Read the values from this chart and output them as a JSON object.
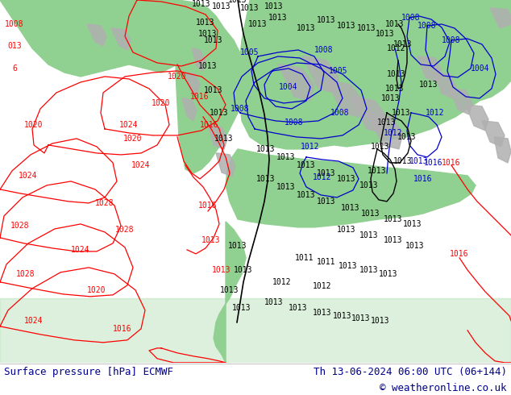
{
  "title_left": "Surface pressure [hPa] ECMWF",
  "title_right": "Th 13-06-2024 06:00 UTC (06+144)",
  "copyright": "© weatheronline.co.uk",
  "bg_color": "#ffffff",
  "ocean_color": "#f0f0f0",
  "land_color": "#90d090",
  "gray_color": "#b0b0b0",
  "footer_text_color": "#00008b",
  "fig_width": 6.34,
  "fig_height": 4.9,
  "dpi": 100,
  "font_family": "monospace",
  "title_fontsize": 9.0,
  "isobar_red": "#ff0000",
  "isobar_blue": "#0000cc",
  "isobar_black": "#000000",
  "lw_isobar": 0.9
}
